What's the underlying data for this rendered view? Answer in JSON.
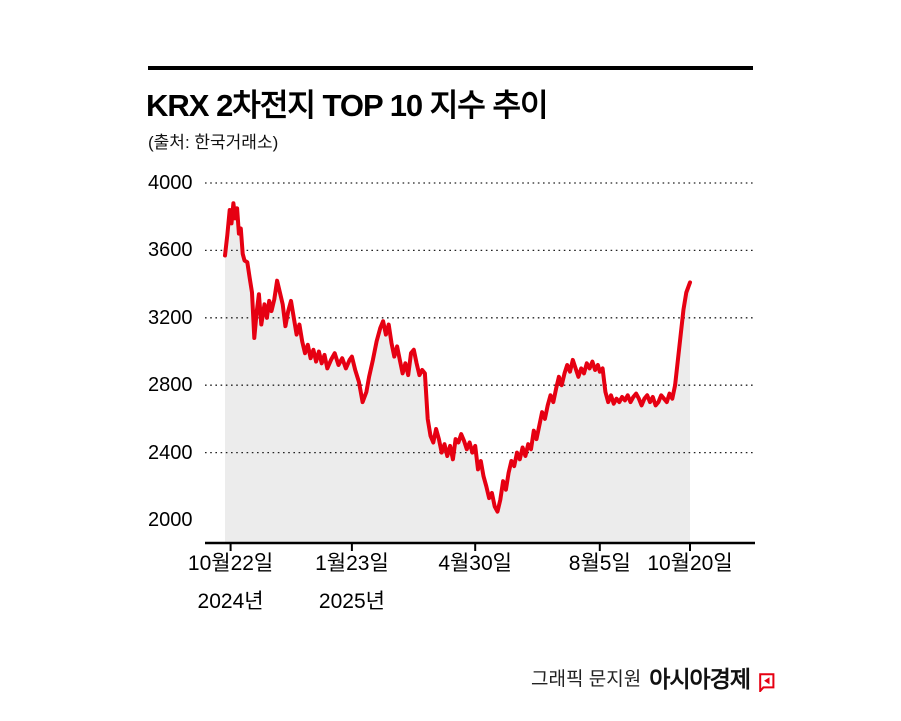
{
  "header": {
    "title": "KRX 2차전지 TOP 10 지수 추이",
    "source": "(출처: 한국거래소)"
  },
  "footer": {
    "credit": "그래픽 문지원",
    "brand": "아시아경제"
  },
  "chart_data": {
    "type": "line",
    "title": "KRX 2차전지 TOP 10 지수 추이",
    "source_label": "(출처: 한국거래소)",
    "ylabel": "",
    "xlabel": "",
    "ylim": [
      2000,
      4000
    ],
    "yticks": [
      4000,
      3600,
      3200,
      2800,
      2400,
      2000
    ],
    "grid": "dotted-horizontal",
    "line_color": "#e60012",
    "area_color": "#ececec",
    "xticks": [
      {
        "t": 0.012,
        "label": "10월22일",
        "sublabel": "2024년"
      },
      {
        "t": 0.273,
        "label": "1월23일",
        "sublabel": "2025년"
      },
      {
        "t": 0.538,
        "label": "4월30일",
        "sublabel": ""
      },
      {
        "t": 0.806,
        "label": "8월5일",
        "sublabel": ""
      },
      {
        "t": 1.0,
        "label": "10월20일",
        "sublabel": ""
      }
    ],
    "series": [
      {
        "name": "KRX 2차전지 TOP 10 지수",
        "points": [
          [
            0.0,
            3570
          ],
          [
            0.005,
            3690
          ],
          [
            0.01,
            3840
          ],
          [
            0.014,
            3760
          ],
          [
            0.018,
            3880
          ],
          [
            0.022,
            3790
          ],
          [
            0.026,
            3850
          ],
          [
            0.03,
            3700
          ],
          [
            0.034,
            3730
          ],
          [
            0.038,
            3580
          ],
          [
            0.042,
            3540
          ],
          [
            0.048,
            3530
          ],
          [
            0.053,
            3440
          ],
          [
            0.058,
            3350
          ],
          [
            0.063,
            3080
          ],
          [
            0.068,
            3230
          ],
          [
            0.073,
            3340
          ],
          [
            0.078,
            3160
          ],
          [
            0.085,
            3280
          ],
          [
            0.09,
            3200
          ],
          [
            0.095,
            3300
          ],
          [
            0.1,
            3240
          ],
          [
            0.106,
            3310
          ],
          [
            0.112,
            3420
          ],
          [
            0.118,
            3350
          ],
          [
            0.124,
            3280
          ],
          [
            0.13,
            3150
          ],
          [
            0.136,
            3240
          ],
          [
            0.142,
            3300
          ],
          [
            0.148,
            3200
          ],
          [
            0.154,
            3100
          ],
          [
            0.16,
            3160
          ],
          [
            0.166,
            3060
          ],
          [
            0.172,
            2990
          ],
          [
            0.178,
            3040
          ],
          [
            0.184,
            2960
          ],
          [
            0.19,
            3010
          ],
          [
            0.196,
            2940
          ],
          [
            0.202,
            3000
          ],
          [
            0.208,
            2930
          ],
          [
            0.214,
            2980
          ],
          [
            0.22,
            2900
          ],
          [
            0.228,
            2950
          ],
          [
            0.236,
            2990
          ],
          [
            0.244,
            2920
          ],
          [
            0.252,
            2960
          ],
          [
            0.26,
            2900
          ],
          [
            0.268,
            2950
          ],
          [
            0.273,
            2970
          ],
          [
            0.28,
            2890
          ],
          [
            0.288,
            2820
          ],
          [
            0.296,
            2700
          ],
          [
            0.304,
            2760
          ],
          [
            0.31,
            2850
          ],
          [
            0.318,
            2950
          ],
          [
            0.326,
            3060
          ],
          [
            0.334,
            3140
          ],
          [
            0.34,
            3180
          ],
          [
            0.346,
            3100
          ],
          [
            0.352,
            3160
          ],
          [
            0.358,
            3050
          ],
          [
            0.364,
            2970
          ],
          [
            0.37,
            3030
          ],
          [
            0.376,
            2950
          ],
          [
            0.382,
            2870
          ],
          [
            0.388,
            2930
          ],
          [
            0.394,
            2860
          ],
          [
            0.4,
            2990
          ],
          [
            0.406,
            3010
          ],
          [
            0.412,
            2930
          ],
          [
            0.418,
            2860
          ],
          [
            0.424,
            2890
          ],
          [
            0.43,
            2870
          ],
          [
            0.436,
            2600
          ],
          [
            0.442,
            2500
          ],
          [
            0.448,
            2460
          ],
          [
            0.454,
            2540
          ],
          [
            0.46,
            2480
          ],
          [
            0.466,
            2400
          ],
          [
            0.472,
            2450
          ],
          [
            0.478,
            2380
          ],
          [
            0.484,
            2440
          ],
          [
            0.49,
            2360
          ],
          [
            0.496,
            2480
          ],
          [
            0.502,
            2460
          ],
          [
            0.508,
            2510
          ],
          [
            0.514,
            2470
          ],
          [
            0.52,
            2420
          ],
          [
            0.526,
            2460
          ],
          [
            0.532,
            2400
          ],
          [
            0.538,
            2440
          ],
          [
            0.544,
            2300
          ],
          [
            0.55,
            2350
          ],
          [
            0.556,
            2260
          ],
          [
            0.562,
            2200
          ],
          [
            0.568,
            2130
          ],
          [
            0.574,
            2160
          ],
          [
            0.58,
            2080
          ],
          [
            0.586,
            2050
          ],
          [
            0.592,
            2120
          ],
          [
            0.598,
            2230
          ],
          [
            0.604,
            2180
          ],
          [
            0.61,
            2280
          ],
          [
            0.616,
            2350
          ],
          [
            0.622,
            2320
          ],
          [
            0.628,
            2400
          ],
          [
            0.634,
            2360
          ],
          [
            0.64,
            2430
          ],
          [
            0.646,
            2380
          ],
          [
            0.652,
            2450
          ],
          [
            0.658,
            2420
          ],
          [
            0.664,
            2530
          ],
          [
            0.67,
            2480
          ],
          [
            0.676,
            2560
          ],
          [
            0.682,
            2640
          ],
          [
            0.688,
            2600
          ],
          [
            0.694,
            2680
          ],
          [
            0.7,
            2740
          ],
          [
            0.706,
            2700
          ],
          [
            0.712,
            2780
          ],
          [
            0.718,
            2850
          ],
          [
            0.724,
            2800
          ],
          [
            0.73,
            2870
          ],
          [
            0.736,
            2920
          ],
          [
            0.742,
            2880
          ],
          [
            0.748,
            2950
          ],
          [
            0.754,
            2900
          ],
          [
            0.76,
            2850
          ],
          [
            0.766,
            2900
          ],
          [
            0.772,
            2870
          ],
          [
            0.778,
            2930
          ],
          [
            0.784,
            2900
          ],
          [
            0.79,
            2940
          ],
          [
            0.796,
            2890
          ],
          [
            0.802,
            2920
          ],
          [
            0.806,
            2880
          ],
          [
            0.812,
            2900
          ],
          [
            0.818,
            2760
          ],
          [
            0.824,
            2700
          ],
          [
            0.83,
            2740
          ],
          [
            0.836,
            2690
          ],
          [
            0.842,
            2720
          ],
          [
            0.848,
            2700
          ],
          [
            0.854,
            2730
          ],
          [
            0.86,
            2710
          ],
          [
            0.866,
            2740
          ],
          [
            0.872,
            2700
          ],
          [
            0.878,
            2730
          ],
          [
            0.884,
            2750
          ],
          [
            0.89,
            2720
          ],
          [
            0.896,
            2680
          ],
          [
            0.902,
            2720
          ],
          [
            0.908,
            2740
          ],
          [
            0.914,
            2700
          ],
          [
            0.92,
            2730
          ],
          [
            0.926,
            2680
          ],
          [
            0.932,
            2700
          ],
          [
            0.938,
            2740
          ],
          [
            0.944,
            2720
          ],
          [
            0.95,
            2700
          ],
          [
            0.956,
            2750
          ],
          [
            0.962,
            2720
          ],
          [
            0.968,
            2800
          ],
          [
            0.974,
            2950
          ],
          [
            0.98,
            3100
          ],
          [
            0.986,
            3250
          ],
          [
            0.992,
            3350
          ],
          [
            1.0,
            3410
          ]
        ]
      }
    ]
  }
}
